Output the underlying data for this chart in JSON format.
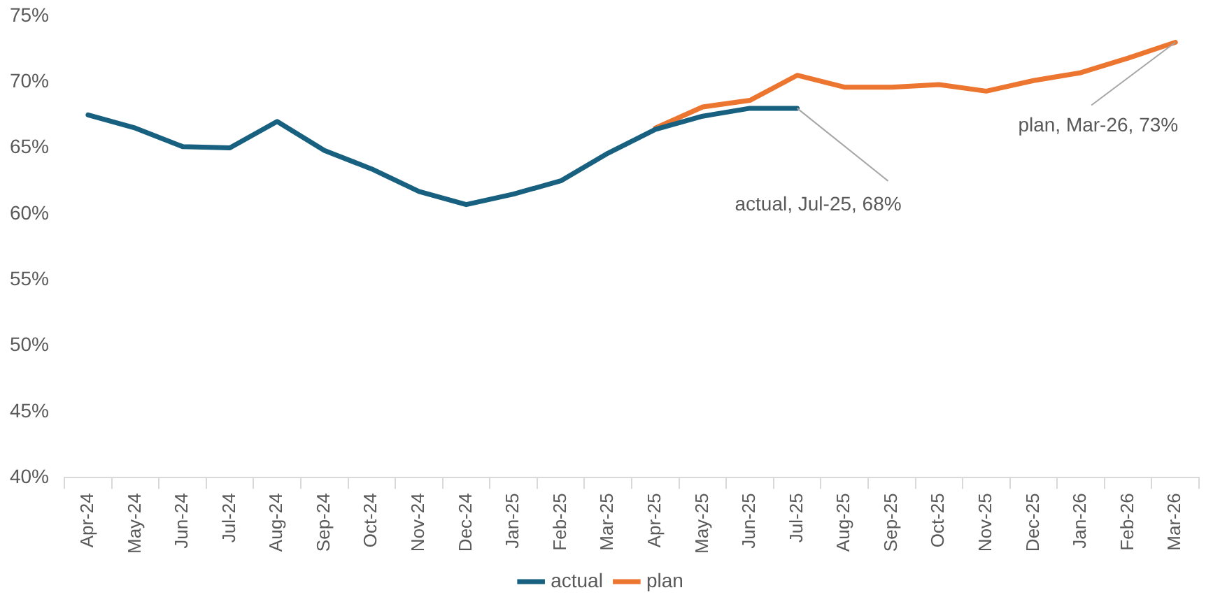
{
  "chart_data": {
    "type": "line",
    "categories": [
      "Apr-24",
      "May-24",
      "Jun-24",
      "Jul-24",
      "Aug-24",
      "Sep-24",
      "Oct-24",
      "Nov-24",
      "Dec-24",
      "Jan-25",
      "Feb-25",
      "Mar-25",
      "Apr-25",
      "May-25",
      "Jun-25",
      "Jul-25",
      "Aug-25",
      "Sep-25",
      "Oct-25",
      "Nov-25",
      "Dec-25",
      "Jan-26",
      "Feb-26",
      "Mar-26"
    ],
    "series": [
      {
        "name": "actual",
        "color": "#17607f",
        "values": [
          67.5,
          66.5,
          65.1,
          65.0,
          67.0,
          64.8,
          63.4,
          61.7,
          60.7,
          61.5,
          62.5,
          64.6,
          66.4,
          67.4,
          68,
          68,
          null,
          null,
          null,
          null,
          null,
          null,
          null,
          null
        ]
      },
      {
        "name": "plan",
        "color": "#ec7530",
        "values": [
          null,
          null,
          null,
          null,
          null,
          null,
          null,
          null,
          null,
          null,
          null,
          null,
          66.5,
          68.1,
          68.6,
          70.5,
          69.6,
          69.6,
          69.8,
          69.3,
          70.1,
          70.7,
          71.8,
          73
        ]
      }
    ],
    "ylim": [
      40,
      75
    ],
    "yticks": [
      {
        "value": 40,
        "label": "40%"
      },
      {
        "value": 45,
        "label": "45%"
      },
      {
        "value": 50,
        "label": "50%"
      },
      {
        "value": 55,
        "label": "55%"
      },
      {
        "value": 60,
        "label": "60%"
      },
      {
        "value": 65,
        "label": "65%"
      },
      {
        "value": 70,
        "label": "70%"
      },
      {
        "value": 75,
        "label": "75%"
      }
    ],
    "annotations": [
      {
        "text": "actual, Jul-25, 68%",
        "x": "Jul-25",
        "y": 68
      },
      {
        "text": "plan, Mar-26, 73%",
        "x": "Mar-26",
        "y": 73
      }
    ],
    "grid": false,
    "legend": "bottom",
    "marker": "none",
    "line_style": "solid"
  }
}
